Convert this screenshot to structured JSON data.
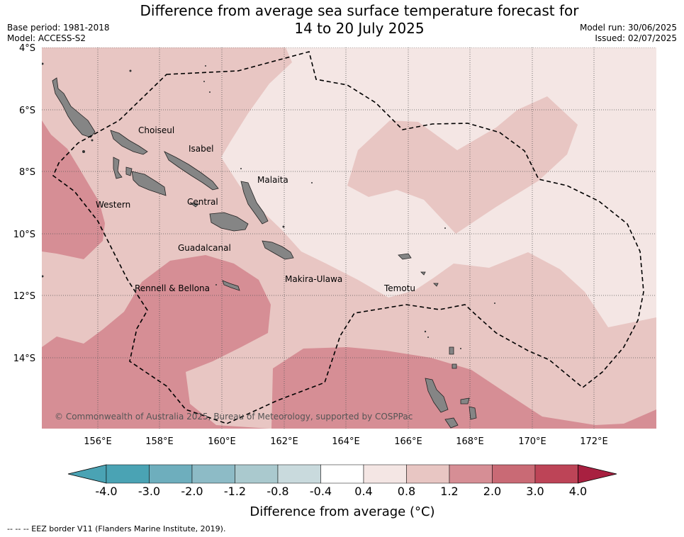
{
  "header": {
    "title_line1": "Difference from average sea surface temperature forecast for",
    "title_line2": "14 to 20 July 2025",
    "base_period": "Base period: 1981-2018",
    "model": "Model: ACCESS-S2",
    "model_run": "Model run: 30/06/2025",
    "issued": "Issued: 02/07/2025"
  },
  "map": {
    "lon_labels": [
      "156°E",
      "158°E",
      "160°E",
      "162°E",
      "164°E",
      "166°E",
      "168°E",
      "170°E",
      "172°E"
    ],
    "lat_labels": [
      "4°S",
      "6°S",
      "8°S",
      "10°S",
      "12°S",
      "14°S"
    ],
    "places": [
      "Choiseul",
      "Isabel",
      "Malaita",
      "Western",
      "Central",
      "Guadalcanal",
      "Makira-Ulawa",
      "Rennell & Bellona",
      "Temotu"
    ],
    "copyright": "© Commonwealth of Australia 2025, Bureau of Meteorology, supported by COSPPac",
    "colors": {
      "ocean_04_08": "#f4e6e4",
      "ocean_08_12": "#e8c6c3",
      "ocean_12_20": "#d68e95",
      "land": "#858585",
      "eez": "#000000"
    }
  },
  "colorbar": {
    "ticks": [
      "-4.0",
      "-3.0",
      "-2.0",
      "-1.2",
      "-0.8",
      "-0.4",
      "0.4",
      "0.8",
      "1.2",
      "2.0",
      "3.0",
      "4.0"
    ],
    "colors": [
      "#4aa3b4",
      "#6eaebd",
      "#8dbbc6",
      "#aac9ce",
      "#c9dadd",
      "#ffffff",
      "#f4e6e4",
      "#e8c6c3",
      "#d68e95",
      "#c96a75",
      "#bd4457",
      "#a82040"
    ],
    "label": "Difference from average (°C)"
  },
  "footer": {
    "legend_text": "--  --  -- EEZ border V11 (Flanders Marine Institute, 2019)."
  }
}
